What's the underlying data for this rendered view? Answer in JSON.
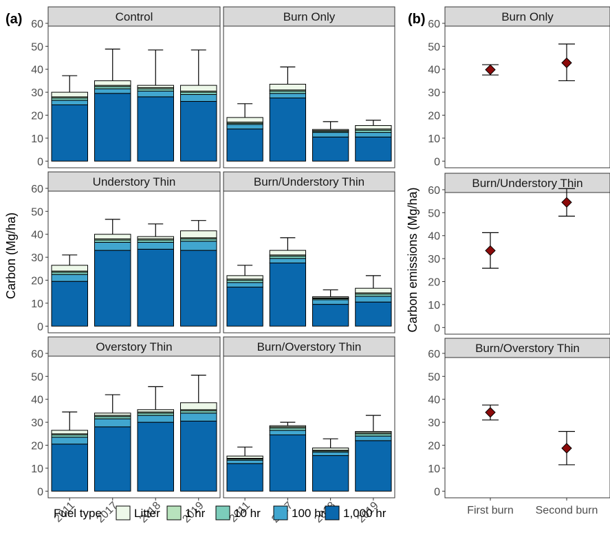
{
  "panel_labels": {
    "a": "(a)",
    "b": "(b)"
  },
  "legend": {
    "title": "Fuel type",
    "items": [
      {
        "label": "Litter",
        "color": "#edf8e9"
      },
      {
        "label": "1 hr",
        "color": "#b8e3bd"
      },
      {
        "label": "10 hr",
        "color": "#7ccdbb"
      },
      {
        "label": "100 hr",
        "color": "#41a6cf"
      },
      {
        "label": "1,000 hr",
        "color": "#0a68ad"
      }
    ]
  },
  "chart_data": [
    {
      "type": "bar",
      "stacked": true,
      "ylabel": "Carbon (Mg/ha)",
      "ylim": [
        0,
        70
      ],
      "yticks": [
        0,
        10,
        20,
        30,
        40,
        50,
        60
      ],
      "categories": [
        "2011",
        "2017",
        "2018",
        "2019"
      ],
      "stack_order": [
        "1,000 hr",
        "100 hr",
        "10 hr",
        "1 hr",
        "Litter"
      ],
      "facets": [
        {
          "title": "Control",
          "stacks": [
            [
              24.5,
              2.0,
              1.0,
              0.5,
              2.0
            ],
            [
              29.5,
              2.0,
              1.0,
              0.5,
              2.0
            ],
            [
              28.0,
              2.5,
              1.0,
              0.5,
              1.0
            ],
            [
              26.0,
              3.0,
              1.0,
              0.5,
              2.5
            ]
          ],
          "error_upper": [
            37.2,
            48.8,
            48.4,
            48.4
          ]
        },
        {
          "title": "Burn Only",
          "stacks": [
            [
              14.0,
              2.0,
              0.5,
              0.5,
              2.0
            ],
            [
              27.5,
              2.0,
              1.0,
              0.5,
              2.5
            ],
            [
              10.5,
              2.0,
              0.5,
              0.3,
              0.5
            ],
            [
              10.5,
              2.0,
              1.0,
              0.5,
              1.5
            ]
          ],
          "error_upper": [
            25.0,
            41.0,
            17.2,
            17.8
          ]
        },
        {
          "title": "Understory Thin",
          "stacks": [
            [
              19.5,
              3.0,
              1.0,
              0.5,
              2.5
            ],
            [
              33.0,
              3.5,
              1.0,
              0.5,
              2.0
            ],
            [
              33.5,
              3.0,
              1.0,
              0.5,
              1.0
            ],
            [
              33.0,
              4.0,
              1.0,
              0.5,
              3.0
            ]
          ],
          "error_upper": [
            31.0,
            46.5,
            44.5,
            46.0
          ]
        },
        {
          "title": "Burn/Understory Thin",
          "stacks": [
            [
              17.0,
              2.0,
              1.0,
              0.5,
              1.5
            ],
            [
              27.5,
              2.0,
              1.0,
              0.5,
              2.0
            ],
            [
              9.5,
              2.0,
              0.5,
              0.3,
              0.5
            ],
            [
              10.5,
              2.5,
              1.0,
              0.5,
              2.0
            ]
          ],
          "error_upper": [
            26.5,
            38.5,
            15.8,
            22.0
          ]
        },
        {
          "title": "Overstory Thin",
          "stacks": [
            [
              20.5,
              3.0,
              1.0,
              0.5,
              1.5
            ],
            [
              28.0,
              3.5,
              1.0,
              0.5,
              1.0
            ],
            [
              30.0,
              3.0,
              1.0,
              0.5,
              1.0
            ],
            [
              30.5,
              3.5,
              1.0,
              0.5,
              3.0
            ]
          ],
          "error_upper": [
            34.5,
            42.0,
            45.5,
            50.5
          ]
        },
        {
          "title": "Burn/Overstory Thin",
          "stacks": [
            [
              12.0,
              1.5,
              0.5,
              0.3,
              1.0
            ],
            [
              24.5,
              2.0,
              1.0,
              0.5,
              0.5
            ],
            [
              15.5,
              1.5,
              0.5,
              0.3,
              1.0
            ],
            [
              22.0,
              2.0,
              1.0,
              0.5,
              0.5
            ]
          ],
          "error_upper": [
            19.2,
            30.0,
            22.8,
            33.0
          ]
        }
      ]
    },
    {
      "type": "scatter",
      "ylabel": "Carbon emissions (Mg/ha)",
      "ylim": [
        0,
        70
      ],
      "yticks": [
        0,
        10,
        20,
        30,
        40,
        50,
        60
      ],
      "categories": [
        "First burn",
        "Second burn"
      ],
      "marker_color": "#8b0a0a",
      "facets": [
        {
          "title": "Burn Only",
          "values": [
            39.8,
            42.8
          ],
          "lower": [
            37.5,
            35.0
          ],
          "upper": [
            42.0,
            51.0
          ]
        },
        {
          "title": "Burn/Understory Thin",
          "values": [
            33.5,
            54.5
          ],
          "lower": [
            25.8,
            48.5
          ],
          "upper": [
            41.3,
            60.5
          ]
        },
        {
          "title": "Burn/Overstory Thin",
          "values": [
            34.3,
            18.7
          ],
          "lower": [
            31.0,
            11.5
          ],
          "upper": [
            37.5,
            26.0
          ]
        }
      ]
    }
  ]
}
